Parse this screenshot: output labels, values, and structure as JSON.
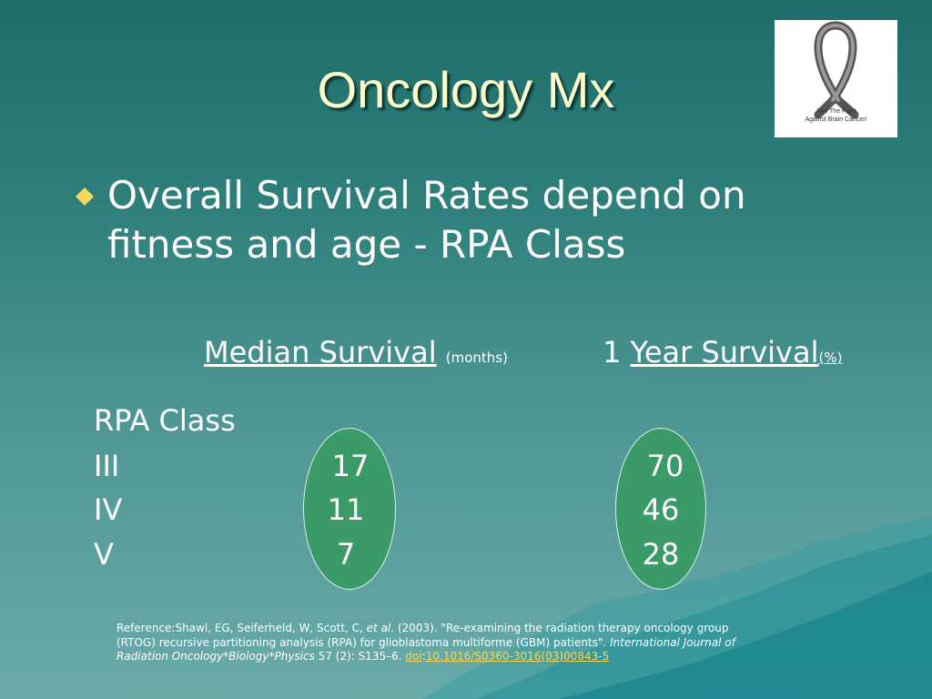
{
  "slide": {
    "title": "Oncology Mx",
    "bullet": "Overall Survival Rates depend on fitness and age -  RPA Class"
  },
  "logo": {
    "line1": "Join The Fight",
    "line2": "Against Brain Cancer!"
  },
  "table": {
    "median_header": "Median Survival",
    "median_unit": "(months)",
    "year_prefix": "1",
    "year_header": "Year Survival",
    "year_unit": "(%)",
    "row_header": "RPA Class",
    "rows": [
      {
        "cls": "III",
        "median": "17",
        "year": "70"
      },
      {
        "cls": "IV",
        "median": "11",
        "year": "46"
      },
      {
        "cls": "V",
        "median": "7",
        "year": "28"
      }
    ]
  },
  "reference": {
    "prefix": "Reference:Shawl, EG, Seiferheld, W, Scott, C, ",
    "et_al": "et al",
    "mid": ". (2003). \"Re-examining the radiation therapy oncology group (RTOG) recursive partitioning analysis (RPA) for glioblastoma multiforme (GBM) patients\". ",
    "journal": "International Journal of Radiation Oncology*Biology*Physics",
    "volume": " 57 (2): S135–6. ",
    "doi_label": "doi",
    "colon": ":",
    "doi_value": "10.1016/S0360-3016(03)00843-5"
  },
  "colors": {
    "background_top": "#1d6e6a",
    "background_bottom": "#6aabaa",
    "title_color": "#ffffcc",
    "bullet_color": "#f5d75a",
    "ellipse_fill": "#3a9a68",
    "link_color": "#f5d75a"
  },
  "icons": {
    "bullet": "diamond-bullet-icon",
    "logo": "awareness-ribbon-icon"
  }
}
